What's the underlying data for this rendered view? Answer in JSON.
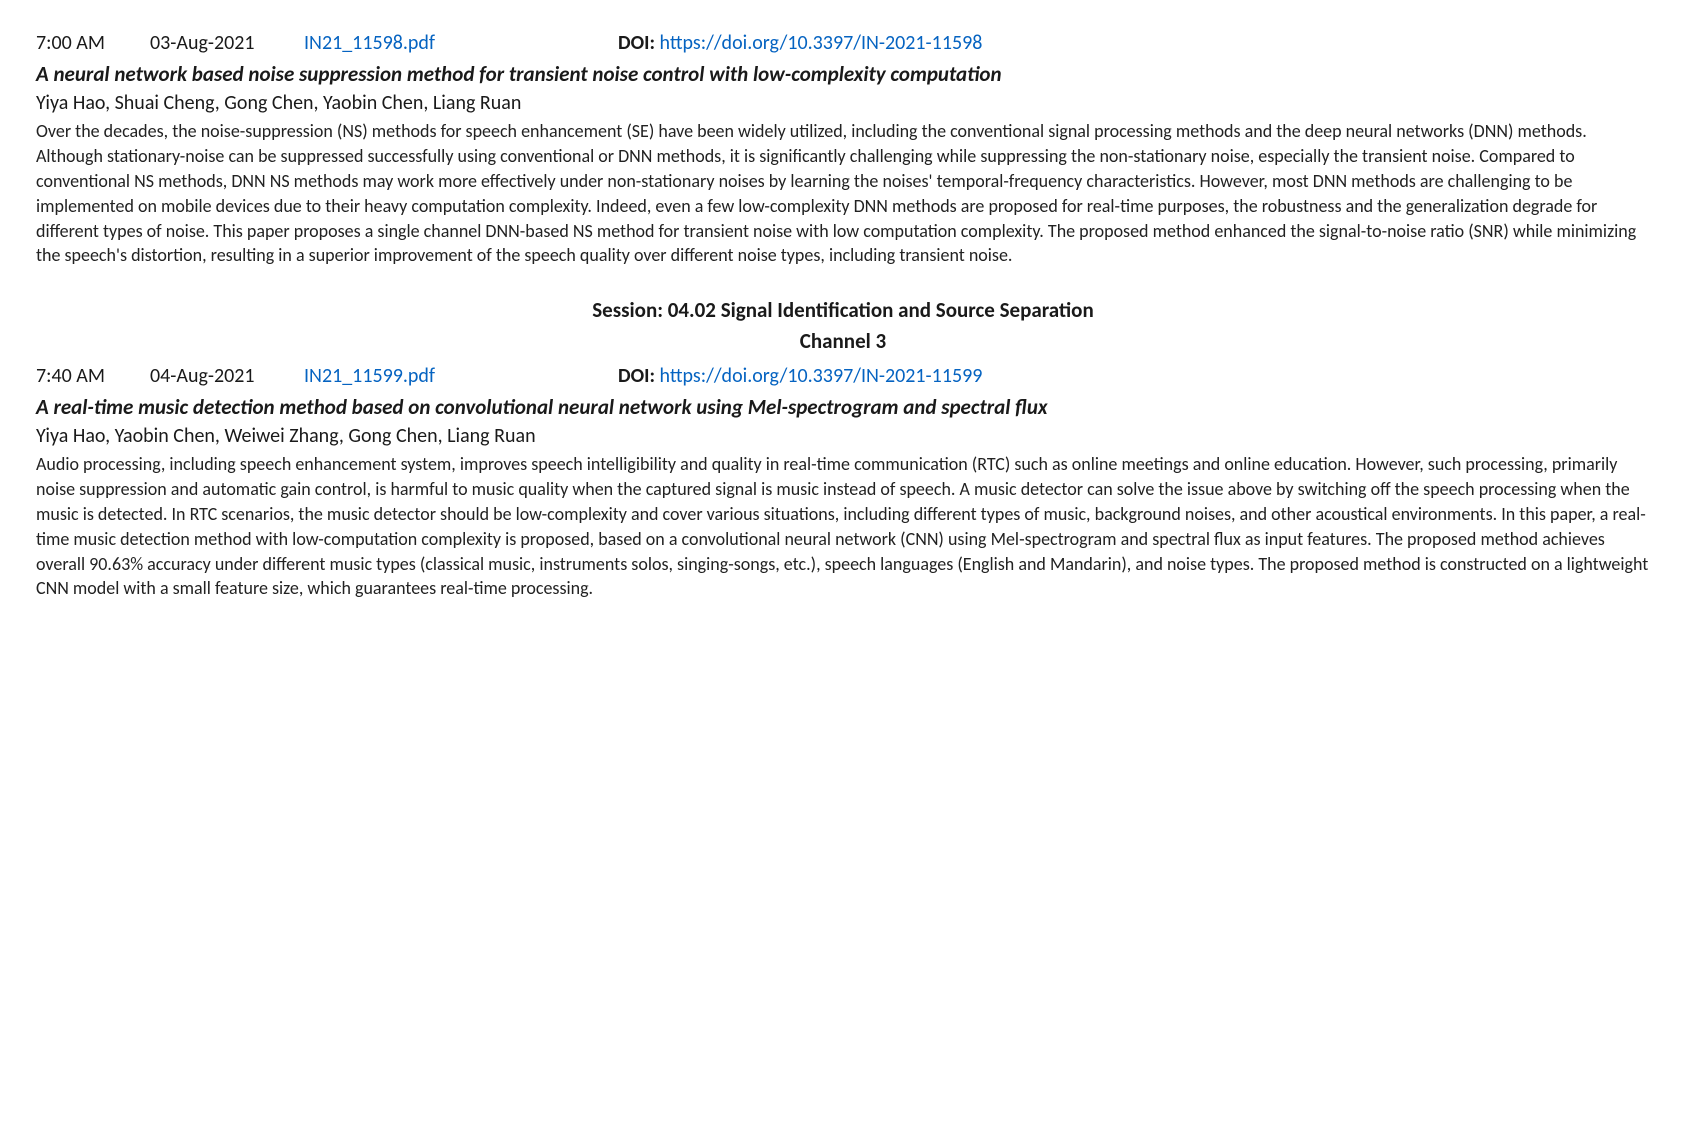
{
  "colors": {
    "link": "#0563c1",
    "text": "#1a1a1a",
    "background": "#ffffff"
  },
  "typography": {
    "base_font": "Calibri, 'Segoe UI', Arial, sans-serif",
    "base_size_pt": 14,
    "title_weight": "bold",
    "title_style": "italic"
  },
  "entries": [
    {
      "time": "7:00 AM",
      "date": "03-Aug-2021",
      "pdf": "IN21_11598.pdf",
      "doi_label": "DOI: ",
      "doi_link": "https://doi.org/10.3397/IN-2021-11598",
      "title": "A neural network based noise suppression method for transient noise control with low-complexity computation",
      "authors": "Yiya Hao, Shuai Cheng, Gong Chen, Yaobin Chen, Liang Ruan",
      "abstract": "Over the decades, the noise-suppression (NS) methods for speech enhancement (SE) have been widely utilized, including the conventional signal processing methods and the deep neural networks (DNN) methods. Although stationary-noise can be suppressed successfully using conventional or DNN methods, it is significantly challenging while suppressing the non-stationary noise, especially the transient noise. Compared to conventional NS methods, DNN NS methods may work more effectively under non-stationary noises by learning the noises' temporal-frequency characteristics. However, most DNN methods are challenging to be implemented on mobile devices due to their heavy computation complexity. Indeed, even a few low-complexity DNN methods are proposed for real-time purposes, the robustness and the generalization degrade for different types of noise. This paper proposes a single channel DNN-based NS method for transient noise with low computation complexity. The proposed method enhanced the signal-to-noise ratio (SNR) while minimizing the speech's distortion, resulting in a superior improvement of the speech quality over different noise types, including transient noise."
    },
    {
      "time": "7:40 AM",
      "date": "04-Aug-2021",
      "pdf": "IN21_11599.pdf",
      "doi_label": "DOI: ",
      "doi_link": "https://doi.org/10.3397/IN-2021-11599",
      "title": "A real-time music detection method based on convolutional neural network using Mel-spectrogram and spectral flux",
      "authors": "Yiya Hao, Yaobin Chen, Weiwei Zhang, Gong Chen, Liang Ruan",
      "abstract": "Audio processing, including speech enhancement system, improves speech intelligibility and quality in real-time communication (RTC) such as online meetings and online education. However, such processing, primarily noise suppression and automatic gain control, is harmful to music quality when the captured signal is music instead of speech. A music detector can solve the issue above by switching off the speech processing when the music is detected. In RTC scenarios, the music detector should be low-complexity and cover various situations, including different types of music, background noises, and other acoustical environments. In this paper, a real-time music detection method with low-computation complexity is proposed, based on a convolutional neural network (CNN) using Mel-spectrogram and spectral flux as input features. The proposed method achieves overall 90.63% accuracy under different music types (classical music, instruments solos, singing-songs, etc.), speech languages (English and Mandarin), and noise types. The proposed method is constructed on a lightweight CNN model with a small feature size, which guarantees real-time processing."
    }
  ],
  "session": {
    "title": "Session: 04.02 Signal Identification and Source Separation",
    "channel": "Channel 3"
  }
}
